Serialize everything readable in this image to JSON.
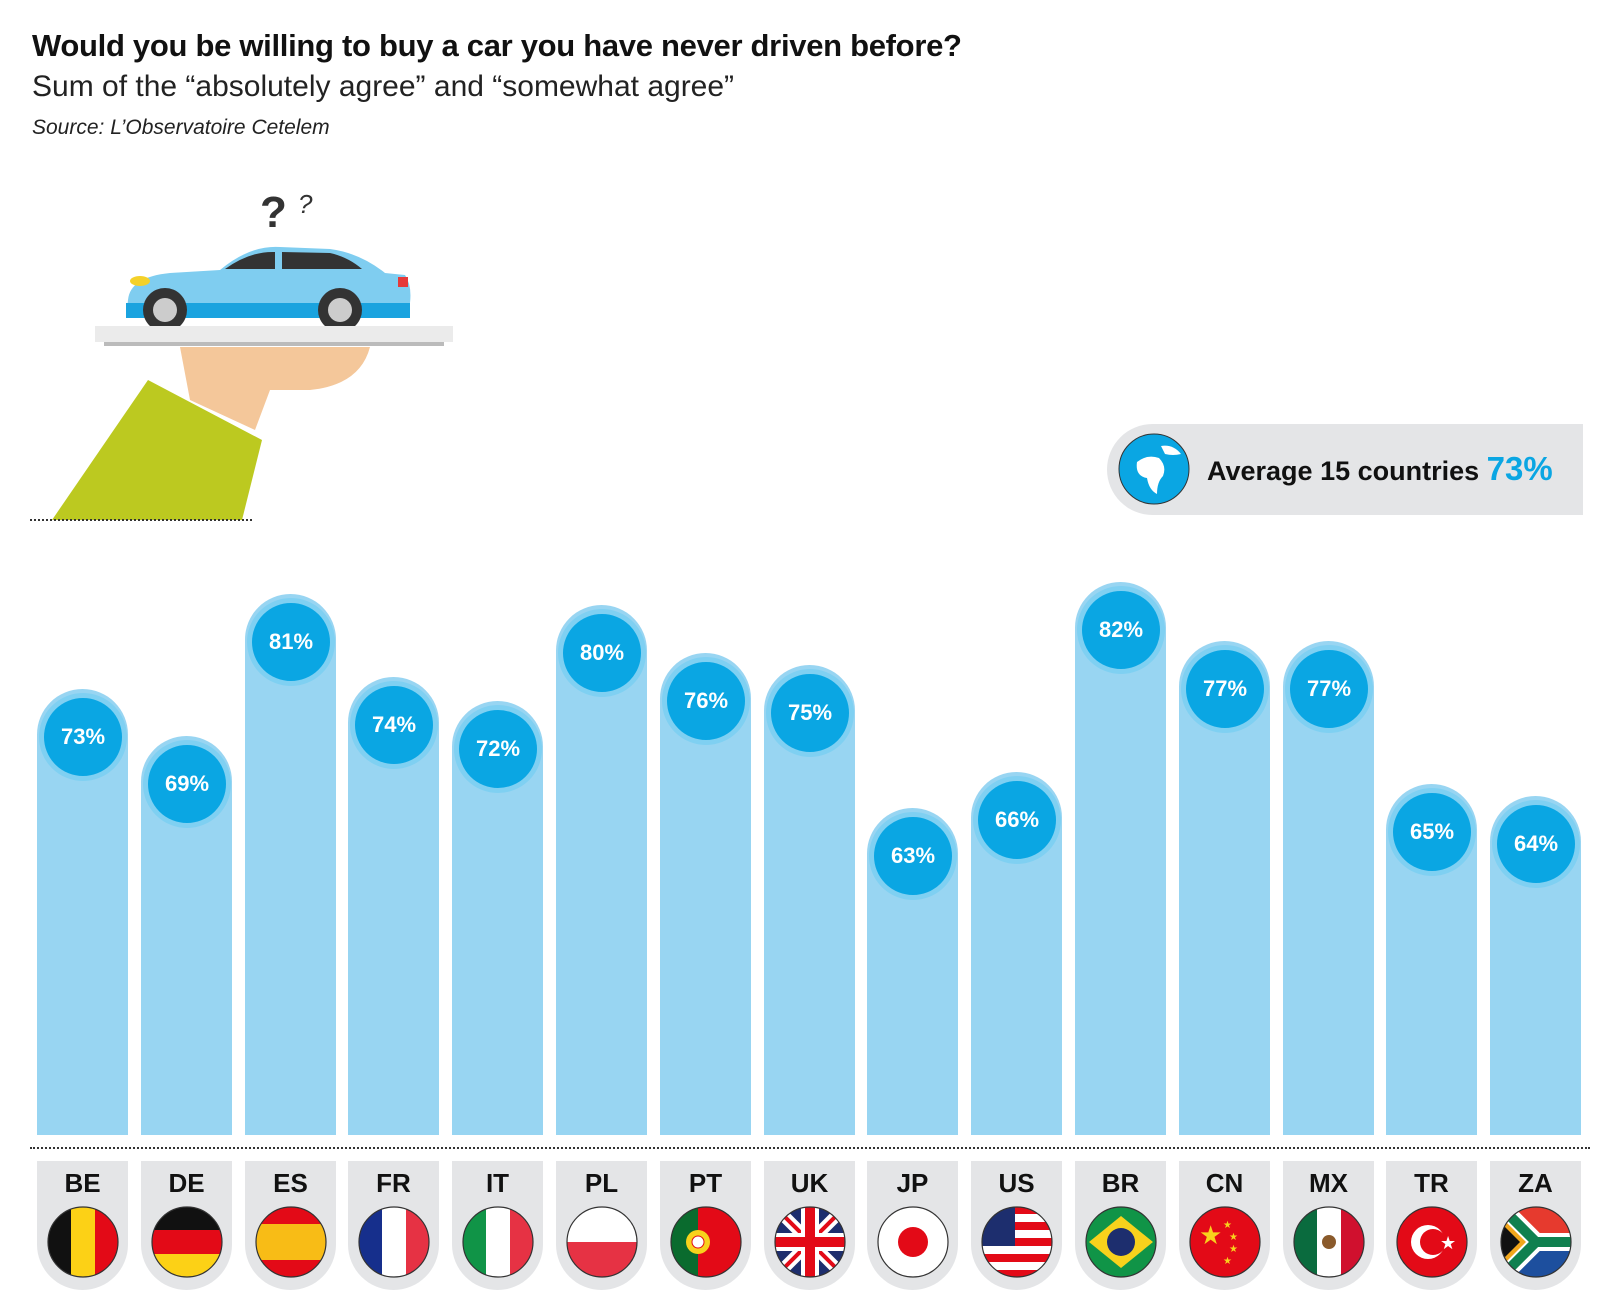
{
  "chart_data": {
    "type": "bar",
    "title": "Would you be willing to buy a car you have never driven before?",
    "subtitle": "Sum of the “absolutely agree” and “somewhat agree”",
    "source": "Source: L’Observatoire Cetelem",
    "categories": [
      "BE",
      "DE",
      "ES",
      "FR",
      "IT",
      "PL",
      "PT",
      "UK",
      "JP",
      "US",
      "BR",
      "CN",
      "MX",
      "TR",
      "ZA"
    ],
    "values": [
      73,
      69,
      81,
      74,
      72,
      80,
      76,
      75,
      63,
      66,
      82,
      77,
      77,
      65,
      64
    ],
    "labels": [
      "73%",
      "69%",
      "81%",
      "74%",
      "72%",
      "80%",
      "76%",
      "75%",
      "63%",
      "66%",
      "82%",
      "77%",
      "77%",
      "65%",
      "64%"
    ],
    "unit": "%",
    "average": {
      "label": "Average 15 countries",
      "value": "73%"
    },
    "colors": {
      "bar": "#98d5f2",
      "bubble": "#0aa6e3",
      "average_value": "#0aa6e3"
    }
  }
}
